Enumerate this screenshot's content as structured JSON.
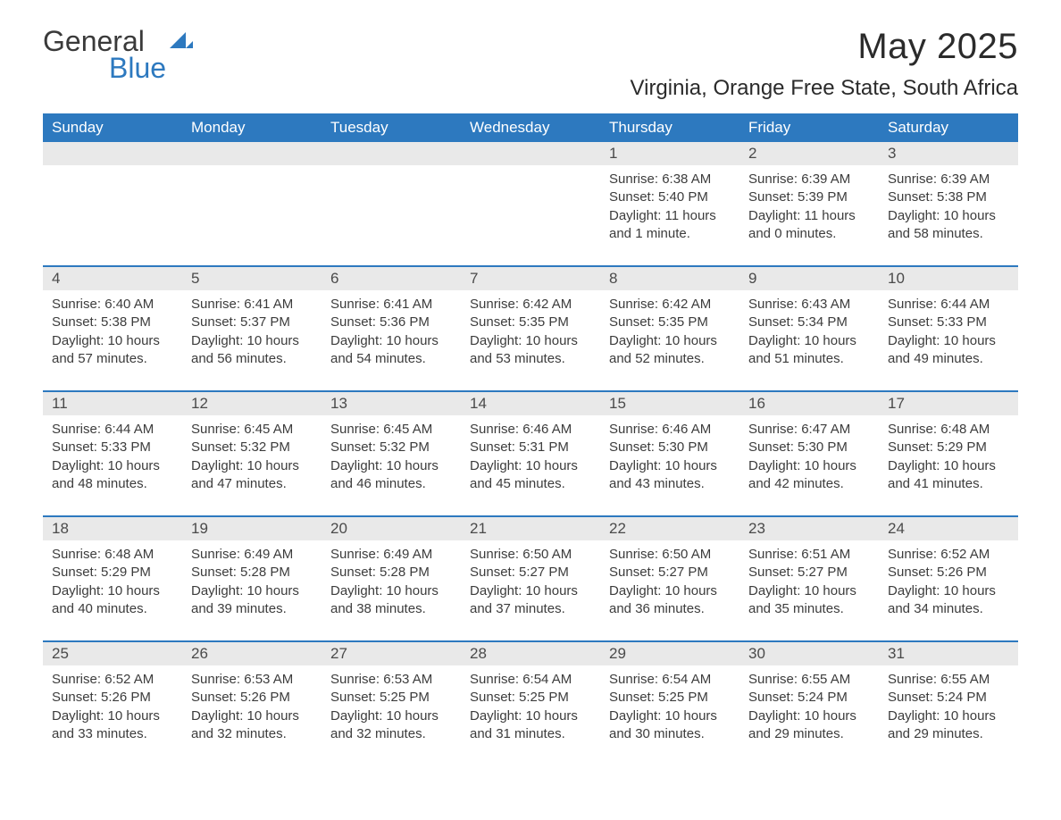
{
  "logo": {
    "word1": "General",
    "word2": "Blue"
  },
  "title": "May 2025",
  "location": "Virginia, Orange Free State, South Africa",
  "colors": {
    "header_bg": "#2d79bf",
    "header_text": "#ffffff",
    "daynum_bg": "#e9e9e9",
    "rule": "#2d79bf",
    "body_text": "#3c3c3c",
    "page_bg": "#ffffff"
  },
  "fonts": {
    "title_size_pt": 30,
    "location_size_pt": 18,
    "weekday_size_pt": 13,
    "body_size_pt": 11
  },
  "weekdays": [
    "Sunday",
    "Monday",
    "Tuesday",
    "Wednesday",
    "Thursday",
    "Friday",
    "Saturday"
  ],
  "weeks": [
    [
      {
        "n": "",
        "sunrise": "",
        "sunset": "",
        "daylight": ""
      },
      {
        "n": "",
        "sunrise": "",
        "sunset": "",
        "daylight": ""
      },
      {
        "n": "",
        "sunrise": "",
        "sunset": "",
        "daylight": ""
      },
      {
        "n": "",
        "sunrise": "",
        "sunset": "",
        "daylight": ""
      },
      {
        "n": "1",
        "sunrise": "6:38 AM",
        "sunset": "5:40 PM",
        "daylight": "11 hours and 1 minute."
      },
      {
        "n": "2",
        "sunrise": "6:39 AM",
        "sunset": "5:39 PM",
        "daylight": "11 hours and 0 minutes."
      },
      {
        "n": "3",
        "sunrise": "6:39 AM",
        "sunset": "5:38 PM",
        "daylight": "10 hours and 58 minutes."
      }
    ],
    [
      {
        "n": "4",
        "sunrise": "6:40 AM",
        "sunset": "5:38 PM",
        "daylight": "10 hours and 57 minutes."
      },
      {
        "n": "5",
        "sunrise": "6:41 AM",
        "sunset": "5:37 PM",
        "daylight": "10 hours and 56 minutes."
      },
      {
        "n": "6",
        "sunrise": "6:41 AM",
        "sunset": "5:36 PM",
        "daylight": "10 hours and 54 minutes."
      },
      {
        "n": "7",
        "sunrise": "6:42 AM",
        "sunset": "5:35 PM",
        "daylight": "10 hours and 53 minutes."
      },
      {
        "n": "8",
        "sunrise": "6:42 AM",
        "sunset": "5:35 PM",
        "daylight": "10 hours and 52 minutes."
      },
      {
        "n": "9",
        "sunrise": "6:43 AM",
        "sunset": "5:34 PM",
        "daylight": "10 hours and 51 minutes."
      },
      {
        "n": "10",
        "sunrise": "6:44 AM",
        "sunset": "5:33 PM",
        "daylight": "10 hours and 49 minutes."
      }
    ],
    [
      {
        "n": "11",
        "sunrise": "6:44 AM",
        "sunset": "5:33 PM",
        "daylight": "10 hours and 48 minutes."
      },
      {
        "n": "12",
        "sunrise": "6:45 AM",
        "sunset": "5:32 PM",
        "daylight": "10 hours and 47 minutes."
      },
      {
        "n": "13",
        "sunrise": "6:45 AM",
        "sunset": "5:32 PM",
        "daylight": "10 hours and 46 minutes."
      },
      {
        "n": "14",
        "sunrise": "6:46 AM",
        "sunset": "5:31 PM",
        "daylight": "10 hours and 45 minutes."
      },
      {
        "n": "15",
        "sunrise": "6:46 AM",
        "sunset": "5:30 PM",
        "daylight": "10 hours and 43 minutes."
      },
      {
        "n": "16",
        "sunrise": "6:47 AM",
        "sunset": "5:30 PM",
        "daylight": "10 hours and 42 minutes."
      },
      {
        "n": "17",
        "sunrise": "6:48 AM",
        "sunset": "5:29 PM",
        "daylight": "10 hours and 41 minutes."
      }
    ],
    [
      {
        "n": "18",
        "sunrise": "6:48 AM",
        "sunset": "5:29 PM",
        "daylight": "10 hours and 40 minutes."
      },
      {
        "n": "19",
        "sunrise": "6:49 AM",
        "sunset": "5:28 PM",
        "daylight": "10 hours and 39 minutes."
      },
      {
        "n": "20",
        "sunrise": "6:49 AM",
        "sunset": "5:28 PM",
        "daylight": "10 hours and 38 minutes."
      },
      {
        "n": "21",
        "sunrise": "6:50 AM",
        "sunset": "5:27 PM",
        "daylight": "10 hours and 37 minutes."
      },
      {
        "n": "22",
        "sunrise": "6:50 AM",
        "sunset": "5:27 PM",
        "daylight": "10 hours and 36 minutes."
      },
      {
        "n": "23",
        "sunrise": "6:51 AM",
        "sunset": "5:27 PM",
        "daylight": "10 hours and 35 minutes."
      },
      {
        "n": "24",
        "sunrise": "6:52 AM",
        "sunset": "5:26 PM",
        "daylight": "10 hours and 34 minutes."
      }
    ],
    [
      {
        "n": "25",
        "sunrise": "6:52 AM",
        "sunset": "5:26 PM",
        "daylight": "10 hours and 33 minutes."
      },
      {
        "n": "26",
        "sunrise": "6:53 AM",
        "sunset": "5:26 PM",
        "daylight": "10 hours and 32 minutes."
      },
      {
        "n": "27",
        "sunrise": "6:53 AM",
        "sunset": "5:25 PM",
        "daylight": "10 hours and 32 minutes."
      },
      {
        "n": "28",
        "sunrise": "6:54 AM",
        "sunset": "5:25 PM",
        "daylight": "10 hours and 31 minutes."
      },
      {
        "n": "29",
        "sunrise": "6:54 AM",
        "sunset": "5:25 PM",
        "daylight": "10 hours and 30 minutes."
      },
      {
        "n": "30",
        "sunrise": "6:55 AM",
        "sunset": "5:24 PM",
        "daylight": "10 hours and 29 minutes."
      },
      {
        "n": "31",
        "sunrise": "6:55 AM",
        "sunset": "5:24 PM",
        "daylight": "10 hours and 29 minutes."
      }
    ]
  ],
  "labels": {
    "sunrise": "Sunrise:",
    "sunset": "Sunset:",
    "daylight": "Daylight:"
  }
}
